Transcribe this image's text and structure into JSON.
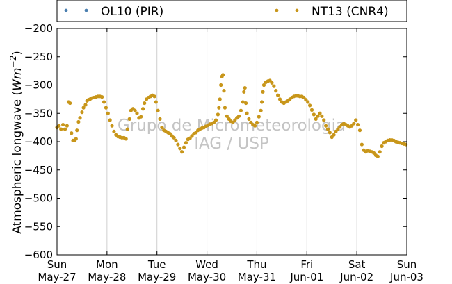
{
  "chart_data": {
    "type": "scatter",
    "ylabel": "Atmospheric longwave",
    "ylabel_unit_base": "Wm",
    "ylabel_unit_exp": "−2",
    "ylim": [
      -600,
      -200
    ],
    "yticks": [
      -200,
      -250,
      -300,
      -350,
      -400,
      -450,
      -500,
      -550,
      -600
    ],
    "ytick_labels": [
      "−200",
      "−250",
      "−300",
      "−350",
      "−400",
      "−450",
      "−500",
      "−550",
      "−600"
    ],
    "xlim": [
      0,
      7
    ],
    "xticks": [
      {
        "x": 0,
        "day": "Sun",
        "date": "May-27"
      },
      {
        "x": 1,
        "day": "Mon",
        "date": "May-28"
      },
      {
        "x": 2,
        "day": "Tue",
        "date": "May-29"
      },
      {
        "x": 3,
        "day": "Wed",
        "date": "May-30"
      },
      {
        "x": 4,
        "day": "Thu",
        "date": "May-31"
      },
      {
        "x": 5,
        "day": "Fri",
        "date": "Jun-01"
      },
      {
        "x": 6,
        "day": "Sat",
        "date": "Jun-02"
      },
      {
        "x": 7,
        "day": "Sun",
        "date": "Jun-03"
      }
    ],
    "grid": "vertical",
    "legend_position": "top, outside",
    "series": [
      {
        "name": "OL10 (PIR)",
        "color": "#4a7fb0",
        "points": []
      },
      {
        "name": "NT13 (CNR4)",
        "color": "#c8961a",
        "points": [
          [
            0.0,
            -375
          ],
          [
            0.04,
            -372
          ],
          [
            0.08,
            -378
          ],
          [
            0.12,
            -370
          ],
          [
            0.16,
            -378
          ],
          [
            0.2,
            -372
          ],
          [
            0.23,
            -330
          ],
          [
            0.26,
            -332
          ],
          [
            0.29,
            -385
          ],
          [
            0.32,
            -398
          ],
          [
            0.35,
            -398
          ],
          [
            0.38,
            -395
          ],
          [
            0.4,
            -380
          ],
          [
            0.43,
            -365
          ],
          [
            0.46,
            -358
          ],
          [
            0.5,
            -348
          ],
          [
            0.53,
            -340
          ],
          [
            0.57,
            -335
          ],
          [
            0.6,
            -328
          ],
          [
            0.63,
            -326
          ],
          [
            0.66,
            -325
          ],
          [
            0.7,
            -323
          ],
          [
            0.74,
            -322
          ],
          [
            0.78,
            -321
          ],
          [
            0.82,
            -320
          ],
          [
            0.86,
            -320
          ],
          [
            0.9,
            -321
          ],
          [
            0.94,
            -330
          ],
          [
            0.98,
            -340
          ],
          [
            1.02,
            -350
          ],
          [
            1.06,
            -362
          ],
          [
            1.1,
            -372
          ],
          [
            1.14,
            -382
          ],
          [
            1.18,
            -388
          ],
          [
            1.22,
            -391
          ],
          [
            1.26,
            -392
          ],
          [
            1.3,
            -393
          ],
          [
            1.34,
            -393
          ],
          [
            1.38,
            -395
          ],
          [
            1.41,
            -378
          ],
          [
            1.45,
            -360
          ],
          [
            1.48,
            -345
          ],
          [
            1.52,
            -342
          ],
          [
            1.56,
            -345
          ],
          [
            1.6,
            -350
          ],
          [
            1.64,
            -358
          ],
          [
            1.68,
            -356
          ],
          [
            1.72,
            -342
          ],
          [
            1.75,
            -332
          ],
          [
            1.79,
            -325
          ],
          [
            1.83,
            -322
          ],
          [
            1.87,
            -320
          ],
          [
            1.91,
            -318
          ],
          [
            1.95,
            -320
          ],
          [
            1.98,
            -330
          ],
          [
            2.02,
            -345
          ],
          [
            2.06,
            -360
          ],
          [
            2.1,
            -375
          ],
          [
            2.14,
            -380
          ],
          [
            2.18,
            -382
          ],
          [
            2.22,
            -384
          ],
          [
            2.26,
            -386
          ],
          [
            2.3,
            -390
          ],
          [
            2.34,
            -393
          ],
          [
            2.38,
            -398
          ],
          [
            2.42,
            -405
          ],
          [
            2.46,
            -412
          ],
          [
            2.5,
            -418
          ],
          [
            2.54,
            -410
          ],
          [
            2.58,
            -402
          ],
          [
            2.62,
            -396
          ],
          [
            2.66,
            -394
          ],
          [
            2.7,
            -390
          ],
          [
            2.74,
            -386
          ],
          [
            2.78,
            -384
          ],
          [
            2.82,
            -380
          ],
          [
            2.86,
            -378
          ],
          [
            2.9,
            -376
          ],
          [
            2.94,
            -375
          ],
          [
            2.98,
            -373
          ],
          [
            3.02,
            -371
          ],
          [
            3.06,
            -369
          ],
          [
            3.1,
            -368
          ],
          [
            3.14,
            -366
          ],
          [
            3.18,
            -362
          ],
          [
            3.22,
            -352
          ],
          [
            3.24,
            -340
          ],
          [
            3.26,
            -325
          ],
          [
            3.28,
            -300
          ],
          [
            3.3,
            -285
          ],
          [
            3.32,
            -282
          ],
          [
            3.34,
            -310
          ],
          [
            3.36,
            -340
          ],
          [
            3.4,
            -355
          ],
          [
            3.44,
            -360
          ],
          [
            3.48,
            -364
          ],
          [
            3.52,
            -366
          ],
          [
            3.56,
            -362
          ],
          [
            3.6,
            -358
          ],
          [
            3.64,
            -355
          ],
          [
            3.68,
            -345
          ],
          [
            3.72,
            -330
          ],
          [
            3.74,
            -312
          ],
          [
            3.76,
            -305
          ],
          [
            3.78,
            -332
          ],
          [
            3.8,
            -350
          ],
          [
            3.84,
            -360
          ],
          [
            3.88,
            -366
          ],
          [
            3.92,
            -370
          ],
          [
            3.96,
            -372
          ],
          [
            4.0,
            -366
          ],
          [
            4.04,
            -356
          ],
          [
            4.08,
            -345
          ],
          [
            4.1,
            -330
          ],
          [
            4.12,
            -312
          ],
          [
            4.14,
            -300
          ],
          [
            4.18,
            -295
          ],
          [
            4.22,
            -293
          ],
          [
            4.26,
            -292
          ],
          [
            4.3,
            -296
          ],
          [
            4.34,
            -302
          ],
          [
            4.38,
            -310
          ],
          [
            4.42,
            -318
          ],
          [
            4.46,
            -325
          ],
          [
            4.5,
            -330
          ],
          [
            4.54,
            -332
          ],
          [
            4.58,
            -330
          ],
          [
            4.62,
            -328
          ],
          [
            4.66,
            -325
          ],
          [
            4.7,
            -322
          ],
          [
            4.74,
            -320
          ],
          [
            4.78,
            -319
          ],
          [
            4.82,
            -319
          ],
          [
            4.86,
            -320
          ],
          [
            4.9,
            -320
          ],
          [
            4.94,
            -322
          ],
          [
            4.98,
            -326
          ],
          [
            5.02,
            -330
          ],
          [
            5.06,
            -336
          ],
          [
            5.1,
            -344
          ],
          [
            5.14,
            -352
          ],
          [
            5.18,
            -360
          ],
          [
            5.22,
            -355
          ],
          [
            5.26,
            -350
          ],
          [
            5.3,
            -355
          ],
          [
            5.34,
            -362
          ],
          [
            5.38,
            -372
          ],
          [
            5.42,
            -378
          ],
          [
            5.46,
            -384
          ],
          [
            5.5,
            -392
          ],
          [
            5.54,
            -388
          ],
          [
            5.58,
            -382
          ],
          [
            5.62,
            -378
          ],
          [
            5.66,
            -374
          ],
          [
            5.7,
            -370
          ],
          [
            5.74,
            -368
          ],
          [
            5.78,
            -370
          ],
          [
            5.82,
            -372
          ],
          [
            5.86,
            -374
          ],
          [
            5.9,
            -372
          ],
          [
            5.94,
            -368
          ],
          [
            5.98,
            -362
          ],
          [
            6.02,
            -370
          ],
          [
            6.06,
            -380
          ],
          [
            6.1,
            -405
          ],
          [
            6.14,
            -415
          ],
          [
            6.18,
            -418
          ],
          [
            6.22,
            -416
          ],
          [
            6.26,
            -417
          ],
          [
            6.3,
            -418
          ],
          [
            6.34,
            -420
          ],
          [
            6.38,
            -424
          ],
          [
            6.42,
            -426
          ],
          [
            6.46,
            -418
          ],
          [
            6.5,
            -408
          ],
          [
            6.54,
            -402
          ],
          [
            6.58,
            -400
          ],
          [
            6.62,
            -398
          ],
          [
            6.66,
            -397
          ],
          [
            6.7,
            -397
          ],
          [
            6.74,
            -398
          ],
          [
            6.78,
            -400
          ],
          [
            6.82,
            -401
          ],
          [
            6.86,
            -402
          ],
          [
            6.9,
            -403
          ],
          [
            6.94,
            -404
          ],
          [
            6.98,
            -405
          ]
        ]
      }
    ]
  },
  "watermark": {
    "line1": "Grupo de Micrometeorologia",
    "line2": "IAG / USP"
  }
}
